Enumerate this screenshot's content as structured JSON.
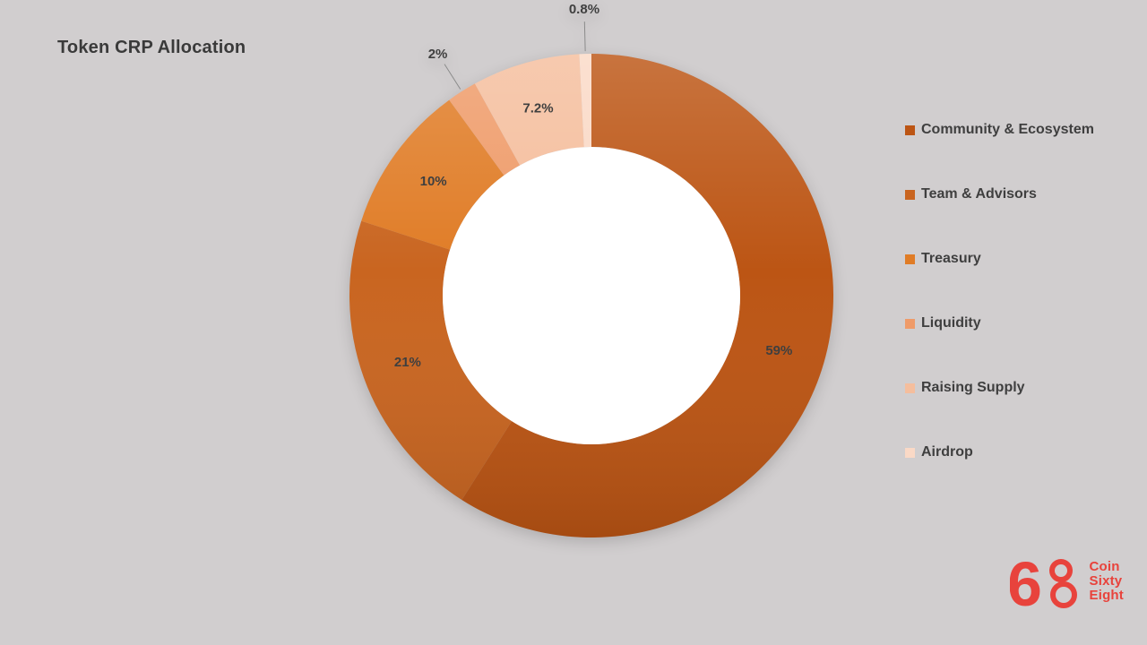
{
  "chart_data": {
    "type": "pie",
    "donut": true,
    "hole_ratio": 0.61,
    "start_angle": 0,
    "direction": "clockwise",
    "legend_position": "right",
    "background": "#d1cecf",
    "title": "Token CRP Allocation",
    "categories": [
      "Community & Ecosystem",
      "Team & Advisors",
      "Treasury",
      "Liquidity",
      "Raising Supply",
      "Airdrop"
    ],
    "values": [
      59,
      21,
      10,
      2,
      7.2,
      0.8
    ],
    "labels": [
      "59%",
      "21%",
      "10%",
      "2%",
      "7.2%",
      "0.8%"
    ],
    "colors": [
      "#BC5514",
      "#C96520",
      "#E07C26",
      "#EF9B69",
      "#F5BE9D",
      "#FAD9C6"
    ]
  },
  "logo": {
    "six": "6",
    "lines": [
      "Coin",
      "Sixty",
      "Eight"
    ],
    "color": "#E8433C"
  }
}
